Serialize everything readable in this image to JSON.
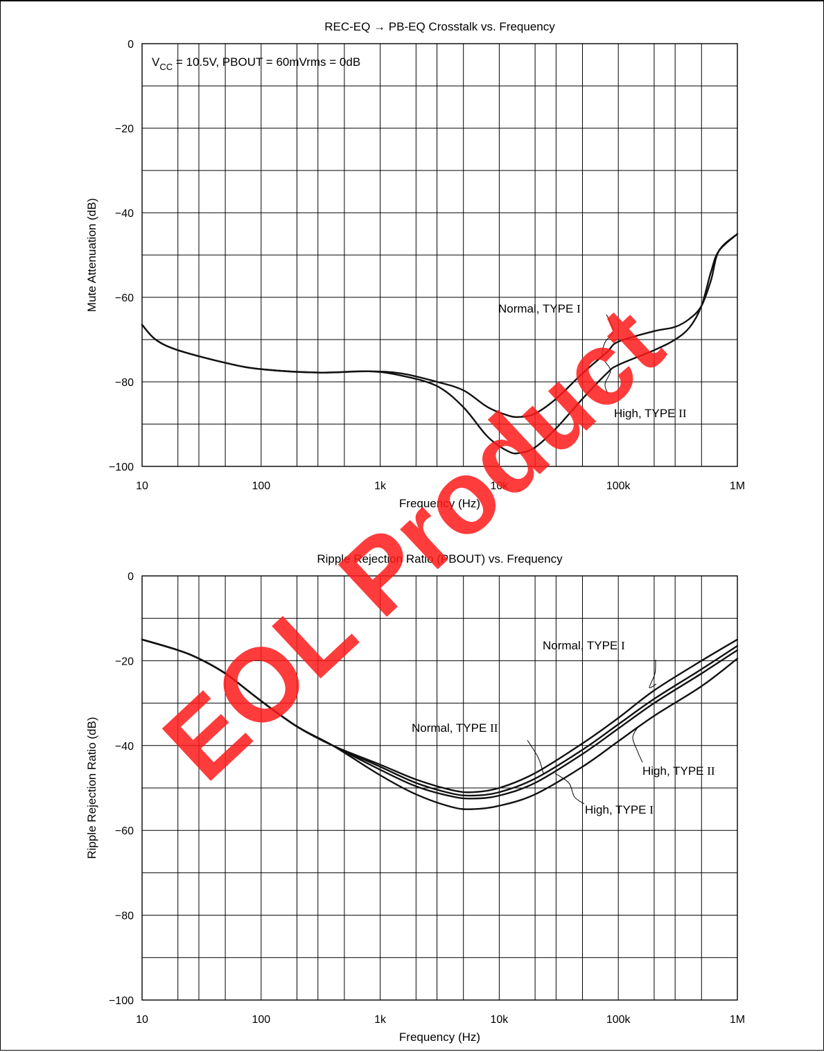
{
  "watermark": "EOL Product",
  "colors": {
    "curve": "#111111",
    "grid": "#000000",
    "watermark": "#ff1a1a"
  },
  "chart_data": [
    {
      "type": "line",
      "title": "REC-EQ → PB-EQ Crosstalk vs. Frequency",
      "condition": {
        "prefix": "V",
        "subscript": "CC",
        "rest": " = 10.5V, PBOUT = 60mVrms = 0dB"
      },
      "xlabel": "Frequency (Hz)",
      "ylabel": "Mute Attenuation  (dB)",
      "xscale": "log",
      "xlim": [
        10,
        1000000
      ],
      "ylim": [
        -100,
        0
      ],
      "x_tick_labels": [
        "10",
        "100",
        "1k",
        "10k",
        "100k",
        "1M"
      ],
      "y_tick_labels": [
        "0",
        "−20",
        "−40",
        "−60",
        "−80",
        "−100"
      ],
      "grid": true,
      "series": [
        {
          "name": "Normal, TYPE I",
          "x": [
            10,
            13,
            20,
            50,
            100,
            300,
            800,
            1500,
            3000,
            5000,
            8000,
            12000,
            15000,
            20000,
            30000,
            50000,
            80000,
            100000,
            200000,
            300000,
            400000,
            500000,
            600000,
            700000,
            1000000
          ],
          "y": [
            -66.5,
            -70,
            -72.5,
            -75.5,
            -77,
            -77.8,
            -77.5,
            -78,
            -80,
            -82,
            -86,
            -88,
            -88.3,
            -87.5,
            -84,
            -78,
            -73,
            -70.5,
            -68,
            -67,
            -65,
            -62,
            -56,
            -49,
            -45
          ]
        },
        {
          "name": "High, TYPE II",
          "x": [
            10,
            13,
            20,
            50,
            100,
            300,
            800,
            1500,
            3000,
            5000,
            8000,
            12000,
            15000,
            20000,
            30000,
            50000,
            80000,
            100000,
            200000,
            300000,
            400000,
            500000,
            600000,
            700000,
            1000000
          ],
          "y": [
            -66.5,
            -70,
            -72.5,
            -75.5,
            -77,
            -77.8,
            -77.5,
            -78.5,
            -81,
            -86,
            -93,
            -96.5,
            -96.8,
            -95.5,
            -91,
            -84,
            -78,
            -76,
            -72.5,
            -70,
            -67,
            -62,
            -54,
            -49,
            -45
          ]
        }
      ],
      "annotations": [
        {
          "series": "Normal, TYPE I",
          "prefix": "Normal, TYPE ",
          "roman": "I"
        },
        {
          "series": "High, TYPE II",
          "prefix": "High, TYPE ",
          "roman": "II"
        }
      ]
    },
    {
      "type": "line",
      "title": "Ripple Rejection Ratio (PBOUT) vs. Frequency",
      "xlabel": "Frequency  (Hz)",
      "ylabel": "Ripple Rejection Ratio  (dB)",
      "xscale": "log",
      "xlim": [
        10,
        1000000
      ],
      "ylim": [
        -100,
        0
      ],
      "x_tick_labels": [
        "10",
        "100",
        "1k",
        "10k",
        "100k",
        "1M"
      ],
      "y_tick_labels": [
        "0",
        "−20",
        "−40",
        "−60",
        "−80",
        "−100"
      ],
      "grid": true,
      "series": [
        {
          "name": "Normal, TYPE I",
          "x": [
            10,
            20,
            30,
            50,
            100,
            200,
            400,
            1000,
            2000,
            4000,
            6000,
            10000,
            20000,
            50000,
            100000,
            200000,
            500000,
            1000000
          ],
          "y": [
            -15,
            -17.5,
            -19.5,
            -23,
            -29.5,
            -35.5,
            -40,
            -44.5,
            -48,
            -50.5,
            -51,
            -50,
            -46.5,
            -39.5,
            -33.5,
            -27,
            -20,
            -15
          ]
        },
        {
          "name": "Normal, TYPE II",
          "x": [
            10,
            20,
            30,
            50,
            100,
            200,
            400,
            1000,
            2000,
            4000,
            6000,
            10000,
            20000,
            50000,
            100000,
            200000,
            500000,
            1000000
          ],
          "y": [
            -15,
            -17.5,
            -19.5,
            -23,
            -29.5,
            -35.5,
            -40,
            -45,
            -48.8,
            -51.3,
            -51.8,
            -51,
            -47.8,
            -41,
            -35,
            -29,
            -22,
            -16.5
          ]
        },
        {
          "name": "High, TYPE I",
          "x": [
            10,
            20,
            30,
            50,
            100,
            200,
            400,
            1000,
            2000,
            4000,
            6000,
            10000,
            20000,
            50000,
            100000,
            200000,
            500000,
            1000000
          ],
          "y": [
            -15,
            -17.5,
            -19.5,
            -23,
            -29.5,
            -35.5,
            -40,
            -45.7,
            -49.6,
            -52,
            -52.5,
            -51.8,
            -48.8,
            -42,
            -36,
            -30,
            -23,
            -17.5
          ]
        },
        {
          "name": "High, TYPE II",
          "x": [
            10,
            20,
            30,
            50,
            100,
            200,
            400,
            1000,
            2000,
            4000,
            6000,
            10000,
            20000,
            50000,
            100000,
            200000,
            500000,
            1000000
          ],
          "y": [
            -15,
            -17.5,
            -19.5,
            -23,
            -29.5,
            -35.5,
            -40,
            -47,
            -51.5,
            -54.5,
            -55,
            -54.2,
            -51.5,
            -45,
            -39,
            -33,
            -26,
            -19.5
          ]
        }
      ],
      "annotations": [
        {
          "series": "Normal, TYPE I",
          "prefix": "Normal, TYPE ",
          "roman": "I"
        },
        {
          "series": "Normal, TYPE II",
          "prefix": "Normal, TYPE ",
          "roman": "II"
        },
        {
          "series": "High, TYPE I",
          "prefix": "High, TYPE ",
          "roman": "I"
        },
        {
          "series": "High, TYPE II",
          "prefix": "High, TYPE ",
          "roman": "II"
        }
      ]
    }
  ]
}
